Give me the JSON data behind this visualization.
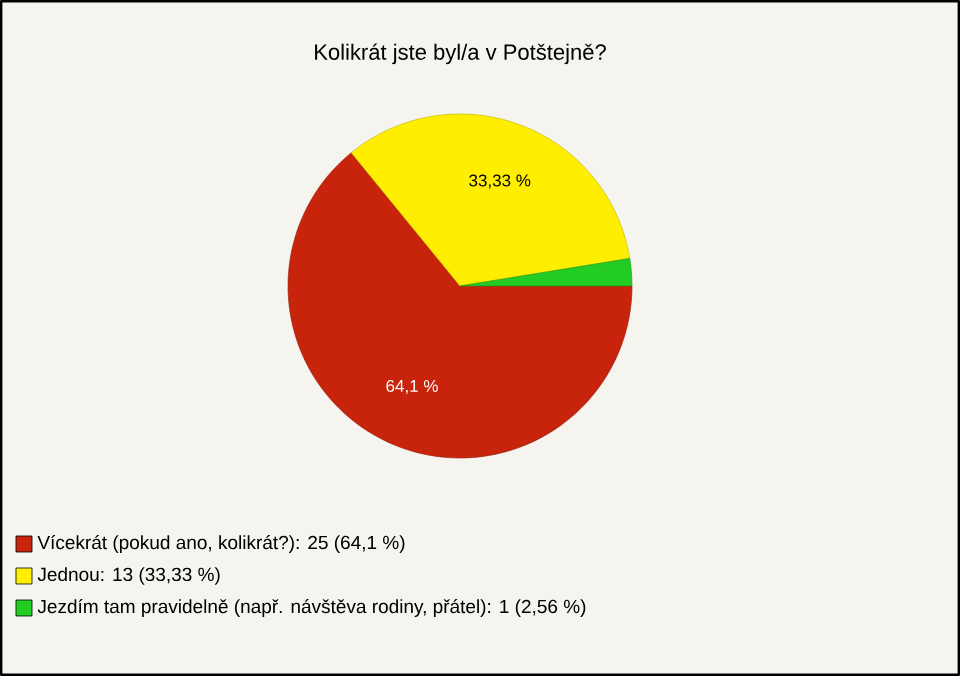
{
  "chart_data": {
    "type": "pie",
    "title": "Kolikrát jste byl/a v Potštejně?",
    "categories": [
      "Vícekrát (pokud ano, kolikrát?): 25 (64,1 %)",
      "Jednou: 13 (33,33 %)",
      "Jezdím tam pravidelně (např. návštěva rodiny, přátel): 1 (2,56 %)"
    ],
    "values": [
      64.1,
      33.33,
      2.56
    ],
    "colors": [
      "#c8240c",
      "#ffee00",
      "#22cc22"
    ],
    "value_labels": [
      "64,1 %",
      "33,33 %",
      null
    ],
    "legend": "bottom left"
  }
}
